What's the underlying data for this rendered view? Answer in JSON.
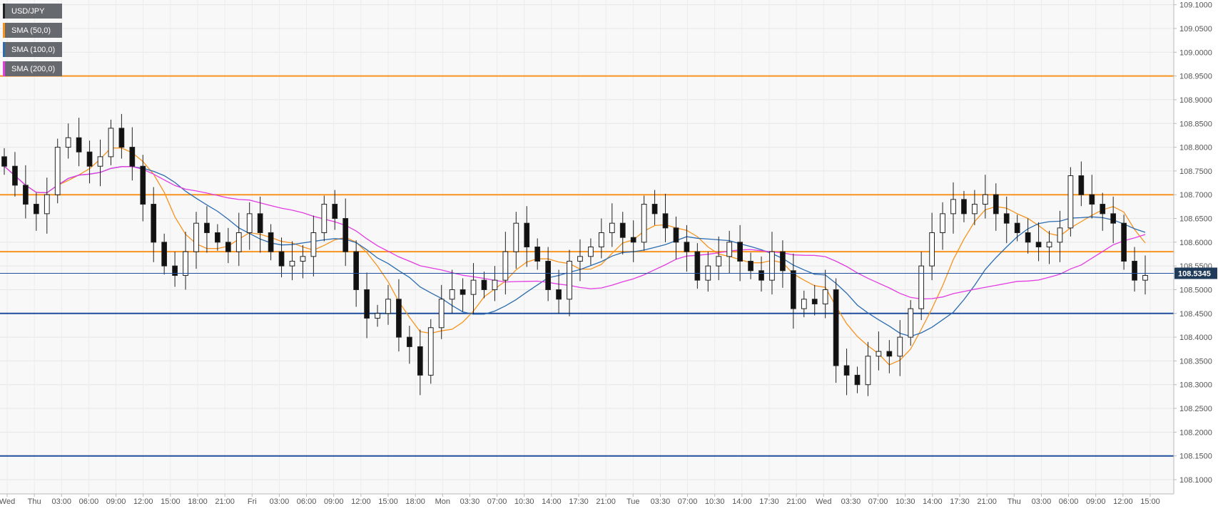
{
  "chart_data": {
    "type": "candlestick",
    "symbol": "USD/JPY",
    "indicators": [
      {
        "name": "SMA (50,0)",
        "color": "#f7931e"
      },
      {
        "name": "SMA (100,0)",
        "color": "#2c6cb0"
      },
      {
        "name": "SMA (200,0)",
        "color": "#e33ce3"
      }
    ],
    "ylim": [
      108.07,
      109.11
    ],
    "y_ticks": [
      "109.1000",
      "109.0500",
      "109.0000",
      "108.9500",
      "108.9000",
      "108.8500",
      "108.8000",
      "108.7500",
      "108.7000",
      "108.6500",
      "108.6000",
      "108.5500",
      "108.5000",
      "108.4500",
      "108.4000",
      "108.3500",
      "108.3000",
      "108.2500",
      "108.2000",
      "108.1500",
      "108.1000"
    ],
    "x_ticks": [
      "Wed",
      "Thu",
      "03:00",
      "06:00",
      "09:00",
      "12:00",
      "15:00",
      "18:00",
      "21:00",
      "Fri",
      "03:00",
      "06:00",
      "09:00",
      "12:00",
      "15:00",
      "18:00",
      "Mon",
      "03:30",
      "07:00",
      "10:30",
      "14:00",
      "17:30",
      "21:00",
      "Tue",
      "03:30",
      "07:00",
      "10:30",
      "14:00",
      "17:30",
      "21:00",
      "Wed",
      "03:30",
      "07:00",
      "10:30",
      "14:00",
      "17:30",
      "21:00",
      "Thu",
      "03:00",
      "06:00",
      "09:00",
      "12:00",
      "15:00"
    ],
    "current_price": "108.5345",
    "horizontal_levels": [
      {
        "value": 108.95,
        "color": "#f7931e"
      },
      {
        "value": 108.7,
        "color": "#f7931e"
      },
      {
        "value": 108.58,
        "color": "#f7931e"
      },
      {
        "value": 108.45,
        "color": "#1f4e9c"
      },
      {
        "value": 108.15,
        "color": "#1f4e9c"
      }
    ],
    "close_path": [
      108.76,
      108.72,
      108.68,
      108.66,
      108.7,
      108.8,
      108.82,
      108.79,
      108.76,
      108.78,
      108.84,
      108.8,
      108.76,
      108.68,
      108.6,
      108.55,
      108.53,
      108.58,
      108.64,
      108.62,
      108.6,
      108.58,
      108.62,
      108.66,
      108.62,
      108.58,
      108.55,
      108.56,
      108.57,
      108.62,
      108.68,
      108.65,
      108.58,
      108.5,
      108.44,
      108.45,
      108.48,
      108.4,
      108.38,
      108.32,
      108.42,
      108.48,
      108.5,
      108.49,
      108.52,
      108.5,
      108.52,
      108.58,
      108.64,
      108.59,
      108.56,
      108.5,
      108.48,
      108.56,
      108.57,
      108.59,
      108.62,
      108.64,
      108.61,
      108.6,
      108.68,
      108.66,
      108.63,
      108.6,
      108.58,
      108.52,
      108.55,
      108.57,
      108.6,
      108.56,
      108.54,
      108.52,
      108.58,
      108.54,
      108.46,
      108.48,
      108.47,
      108.5,
      108.34,
      108.32,
      108.3,
      108.36,
      108.37,
      108.36,
      108.4,
      108.46,
      108.55,
      108.62,
      108.66,
      108.69,
      108.66,
      108.68,
      108.7,
      108.66,
      108.64,
      108.62,
      108.6,
      108.59,
      108.6,
      108.63,
      108.74,
      108.7,
      108.68,
      108.66,
      108.64,
      108.56,
      108.52,
      108.53
    ]
  }
}
